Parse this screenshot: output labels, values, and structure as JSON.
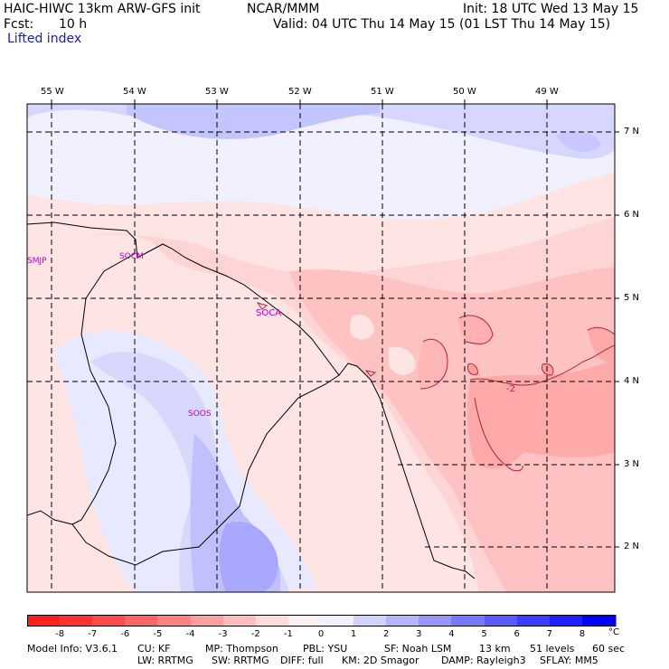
{
  "header": {
    "model": "HAIC-HIWC 13km ARW-GFS init",
    "org": "NCAR/MMM",
    "init": "Init: 18 UTC Wed 13 May 15",
    "fcst_label": "Fcst:",
    "fcst_value": "10 h",
    "valid": "Valid: 04 UTC Thu 14 May 15 (01 LST Thu 14 May 15)",
    "field": "Lifted index"
  },
  "map": {
    "lon_labels": [
      "55 W",
      "54 W",
      "53 W",
      "52 W",
      "51 W",
      "50 W",
      "49 W"
    ],
    "lat_labels": [
      "7 N",
      "6 N",
      "5 N",
      "4 N",
      "3 N",
      "2 N"
    ],
    "stations": [
      {
        "id": "SMJP"
      },
      {
        "id": "SOCM"
      },
      {
        "id": "SOCA"
      },
      {
        "id": "SOOS"
      }
    ],
    "contour_label": "-2"
  },
  "legend": {
    "ticks": [
      "-8",
      "-7",
      "-6",
      "-5",
      "-4",
      "-3",
      "-2",
      "-1",
      "0",
      "1",
      "2",
      "3",
      "4",
      "5",
      "6",
      "7",
      "8"
    ],
    "unit": "°C",
    "colors": [
      "#ff1e1e",
      "#ff3232",
      "#ff4a4a",
      "#ff6464",
      "#ff8282",
      "#ffa0a0",
      "#ffbebe",
      "#ffdcdc",
      "#fff0f0",
      "#f0f0ff",
      "#d2d2ff",
      "#b4b4ff",
      "#9696ff",
      "#7878ff",
      "#5a5aff",
      "#3c3cff",
      "#1e1eff",
      "#0000ff"
    ]
  },
  "footer": {
    "line1": [
      "Model Info: V3.6.1",
      "CU: KF",
      "MP: Thompson",
      "PBL: YSU",
      "SF: Noah LSM",
      "13 km",
      "51 levels",
      "60 sec"
    ],
    "line2": [
      "LW: RRTMG",
      "SW: RRTMG",
      "DIFF: full",
      "KM: 2D Smagor",
      "DAMP: Rayleigh3",
      "SFLAY: MM5"
    ]
  }
}
